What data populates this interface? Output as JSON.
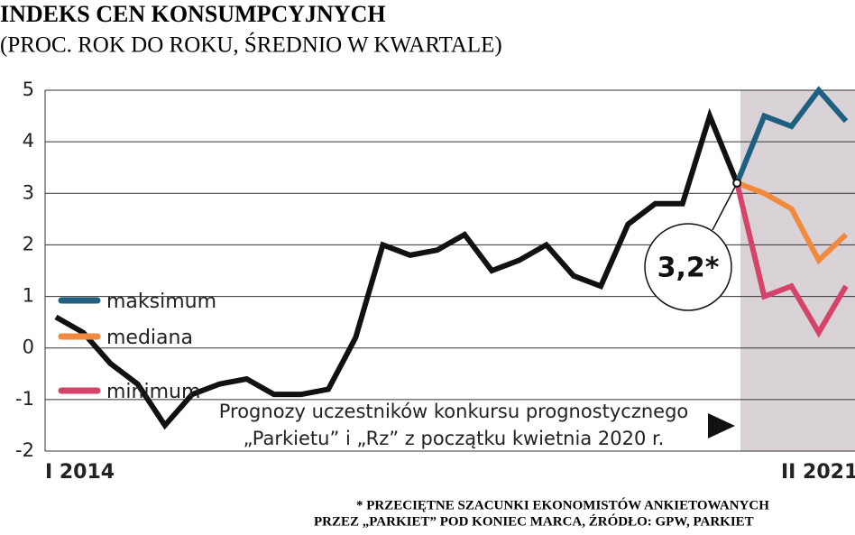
{
  "chart_data": {
    "type": "line",
    "title": "INDEKS CEN KONSUMPCYJNYCH",
    "subtitle": "(PROC. ROK DO ROKU, ŚREDNIO W KWARTALE)",
    "categories": [
      "I 2014",
      null,
      null,
      null,
      null,
      null,
      null,
      null,
      null,
      null,
      null,
      null,
      null,
      null,
      null,
      null,
      null,
      null,
      null,
      null,
      null,
      null,
      null,
      null,
      null,
      null,
      null,
      null,
      null,
      "II 2021"
    ],
    "series": [
      {
        "color": "#111111",
        "values": [
          0.6,
          0.3,
          -0.3,
          -0.7,
          -1.5,
          -0.9,
          -0.7,
          -0.6,
          -0.9,
          -0.9,
          -0.8,
          0.2,
          2.0,
          1.8,
          1.9,
          2.2,
          1.5,
          1.7,
          2.0,
          1.4,
          1.2,
          2.4,
          2.8,
          2.8,
          4.5,
          3.2,
          null,
          null,
          null,
          null
        ]
      },
      {
        "name": "maksimum",
        "color": "#1f5f80",
        "values": [
          null,
          null,
          null,
          null,
          null,
          null,
          null,
          null,
          null,
          null,
          null,
          null,
          null,
          null,
          null,
          null,
          null,
          null,
          null,
          null,
          null,
          null,
          null,
          null,
          null,
          3.2,
          4.5,
          4.3,
          5.0,
          4.4
        ]
      },
      {
        "name": "mediana",
        "color": "#f08a3e",
        "values": [
          null,
          null,
          null,
          null,
          null,
          null,
          null,
          null,
          null,
          null,
          null,
          null,
          null,
          null,
          null,
          null,
          null,
          null,
          null,
          null,
          null,
          null,
          null,
          null,
          null,
          3.2,
          3.0,
          2.7,
          1.7,
          2.2
        ]
      },
      {
        "name": "minimum",
        "color": "#d6436a",
        "values": [
          null,
          null,
          null,
          null,
          null,
          null,
          null,
          null,
          null,
          null,
          null,
          null,
          null,
          null,
          null,
          null,
          null,
          null,
          null,
          null,
          null,
          null,
          null,
          null,
          null,
          3.2,
          1.0,
          1.2,
          0.3,
          1.2
        ]
      }
    ],
    "ylim": [
      -2,
      5
    ],
    "yticks": [
      -2,
      -1,
      0,
      1,
      2,
      3,
      4,
      5
    ],
    "grid": true,
    "callout": "3,2*",
    "annotation": [
      "Prognozy uczestników konkursu prognostycznego",
      "„Parkietu” i „Rz” z początku kwietnia 2020 r."
    ],
    "footnote": [
      "* PRZECIĘTNE SZACUNKI EKONOMISTÓW ANKIETOWANYCH",
      "PRZEZ „PARKIET” POD KONIEC MARCA, ŹRÓDŁO: GPW, PARKIET"
    ]
  }
}
